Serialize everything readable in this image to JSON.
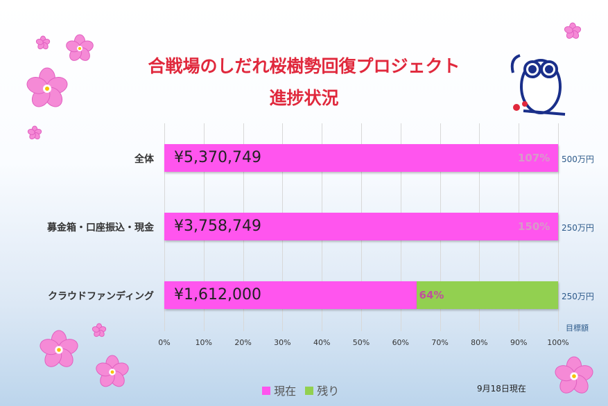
{
  "title_line1": "合戦場のしだれ桜樹勢回復プロジェクト",
  "title_line2": "進捗状況",
  "chart_data": {
    "type": "bar",
    "orientation": "horizontal",
    "stacked": true,
    "categories": [
      "全体",
      "募金箱・口座振込・現金",
      "クラウドファンディング"
    ],
    "series": [
      {
        "name": "現在",
        "color": "#ff55ee",
        "values": [
          100,
          100,
          64
        ]
      },
      {
        "name": "残り",
        "color": "#92d050",
        "values": [
          0,
          0,
          36
        ]
      }
    ],
    "amounts": [
      "¥5,370,749",
      "¥3,758,749",
      "¥1,612,000"
    ],
    "percent_labels": [
      "107%",
      "150%",
      "64%"
    ],
    "targets": [
      "500万円",
      "250万円",
      "250万円"
    ],
    "target_label": "目標額",
    "xticks": [
      "0%",
      "10%",
      "20%",
      "30%",
      "40%",
      "50%",
      "60%",
      "70%",
      "80%",
      "90%",
      "100%"
    ],
    "xlim": [
      0,
      100
    ],
    "grid": true,
    "legend": "bottom"
  },
  "date_note": "9月18日現在"
}
